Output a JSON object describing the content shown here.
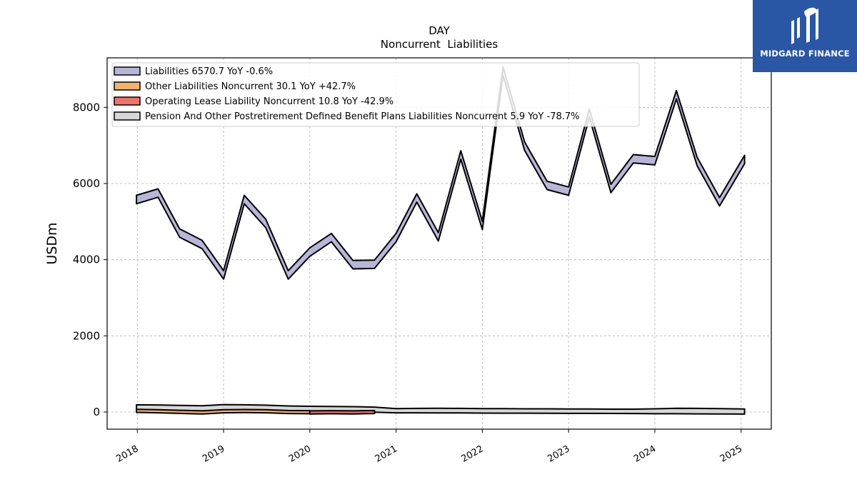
{
  "header": {
    "ticker": "DAY",
    "title": "Noncurrent  Liabilities"
  },
  "logo": {
    "text": "MIDGARD FINANCE",
    "icon": "midgard-logo-icon",
    "color": "#2a56a6"
  },
  "chart_data": {
    "type": "area",
    "ylabel": "USDm",
    "xlabel": "",
    "ylim": [
      -450,
      9300
    ],
    "xlim": [
      2017.65,
      2025.35
    ],
    "yticks": [
      0,
      2000,
      4000,
      6000,
      8000
    ],
    "ytick_labels": [
      "0",
      "2000",
      "4000",
      "6000",
      "8000"
    ],
    "xticks": [
      2018,
      2019,
      2020,
      2021,
      2022,
      2023,
      2024,
      2025
    ],
    "xtick_labels": [
      "2018",
      "2019",
      "2020",
      "2021",
      "2022",
      "2023",
      "2024",
      "2025"
    ],
    "grid": true,
    "legend_position": "top-left",
    "series": [
      {
        "name": "Liabilities",
        "legend": "Liabilities  6570.7 YoY -0.6%",
        "color": "#b8b6d8",
        "x": [
          2017.99,
          2018.24,
          2018.49,
          2018.75,
          2019.0,
          2019.24,
          2019.49,
          2019.75,
          2020.0,
          2020.25,
          2020.5,
          2020.75,
          2021.0,
          2021.24,
          2021.49,
          2021.75,
          2022.0,
          2022.24,
          2022.49,
          2022.75,
          2023.0,
          2023.24,
          2023.49,
          2023.75,
          2024.0,
          2024.25,
          2024.49,
          2024.75,
          2025.04
        ],
        "values": [
          5580,
          5750,
          4700,
          4400,
          3600,
          5580,
          4950,
          3600,
          4200,
          4580,
          3870,
          3880,
          4580,
          5620,
          4600,
          6750,
          4900,
          8950,
          6980,
          5950,
          5800,
          7850,
          5870,
          6650,
          6600,
          8330,
          6580,
          5520,
          6630
        ]
      },
      {
        "name": "Other Liabilities Noncurrent",
        "legend": "Other Liabilities Noncurrent  30.1 YoY +42.7%",
        "color": "#f5b26b",
        "x": [
          2017.99,
          2018.24,
          2018.49,
          2018.75,
          2019.0,
          2019.24,
          2019.49,
          2019.75,
          2020.0
        ],
        "values": [
          30,
          20,
          5,
          -10,
          20,
          25,
          20,
          0,
          -5
        ]
      },
      {
        "name": "Operating Lease Liability Noncurrent",
        "legend": "Operating Lease Liability Noncurrent  10.8 YoY -42.9%",
        "color": "#ee7368",
        "x": [
          2020.0,
          2020.25,
          2020.5,
          2020.75
        ],
        "values": [
          -10,
          -5,
          -10,
          0
        ]
      },
      {
        "name": "Pension And Other Postretirement Defined Benefit Plans Liabilities Noncurrent",
        "legend": "Pension And Other Postretirement Defined Benefit Plans Liabilities Noncurrent  5.9 YoY -78.7%",
        "color": "#d7d7d7",
        "x": [
          2017.99,
          2018.24,
          2018.49,
          2018.75,
          2019.0,
          2019.24,
          2019.49,
          2019.75,
          2020.0,
          2020.25,
          2020.5,
          2020.75,
          2021.0,
          2021.24,
          2021.49,
          2021.75,
          2022.0,
          2022.24,
          2022.49,
          2022.75,
          2023.0,
          2023.24,
          2023.49,
          2023.75,
          2024.0,
          2024.25,
          2024.49,
          2024.75,
          2025.04
        ],
        "upper": [
          190,
          185,
          175,
          165,
          195,
          190,
          180,
          160,
          150,
          145,
          140,
          130,
          90,
          95,
          100,
          95,
          90,
          90,
          85,
          85,
          80,
          80,
          75,
          75,
          85,
          100,
          95,
          90,
          80
        ],
        "lower": [
          30,
          20,
          5,
          -10,
          20,
          25,
          20,
          0,
          -5,
          -10,
          -10,
          -5,
          -20,
          -20,
          -22,
          -25,
          -28,
          -30,
          -30,
          -32,
          -35,
          -35,
          -38,
          -40,
          -45,
          -45,
          -48,
          -50,
          -55
        ]
      }
    ]
  }
}
